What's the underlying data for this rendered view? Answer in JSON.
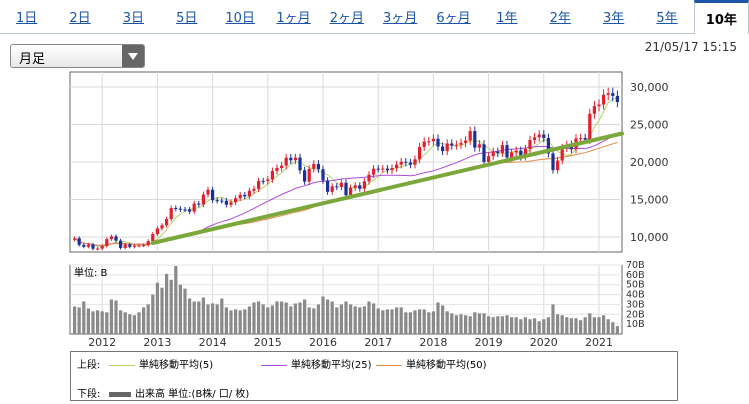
{
  "tabs": [
    {
      "label": "1日",
      "active": false
    },
    {
      "label": "2日",
      "active": false
    },
    {
      "label": "3日",
      "active": false
    },
    {
      "label": "5日",
      "active": false
    },
    {
      "label": "10日",
      "active": false
    },
    {
      "label": "1ヶ月",
      "active": false
    },
    {
      "label": "2ヶ月",
      "active": false
    },
    {
      "label": "3ヶ月",
      "active": false
    },
    {
      "label": "6ヶ月",
      "active": false
    },
    {
      "label": "1年",
      "active": false
    },
    {
      "label": "2年",
      "active": false
    },
    {
      "label": "3年",
      "active": false
    },
    {
      "label": "5年",
      "active": false
    },
    {
      "label": "10年",
      "active": true
    }
  ],
  "period_select": {
    "value": "月足"
  },
  "timestamp": "21/05/17 15:15",
  "legend": {
    "upper_label": "上段:",
    "lower_label": "下段:",
    "items": [
      {
        "label": "単純移動平均(5)",
        "color": "#b5d26b"
      },
      {
        "label": "単純移動平均(25)",
        "color": "#b04ad8"
      },
      {
        "label": "単純移動平均(50)",
        "color": "#e08a4a"
      }
    ],
    "volume_label": "出来高 単位:(B株/ 口/ 枚)"
  },
  "chart_data": [
    {
      "type": "candlestick",
      "x": [
        "2011-07",
        "2011-08",
        "2011-09",
        "2011-10",
        "2011-11",
        "2011-12",
        "2012-01",
        "2012-02",
        "2012-03",
        "2012-04",
        "2012-05",
        "2012-06",
        "2012-07",
        "2012-08",
        "2012-09",
        "2012-10",
        "2012-11",
        "2012-12",
        "2013-01",
        "2013-02",
        "2013-03",
        "2013-04",
        "2013-05",
        "2013-06",
        "2013-07",
        "2013-08",
        "2013-09",
        "2013-10",
        "2013-11",
        "2013-12",
        "2014-01",
        "2014-02",
        "2014-03",
        "2014-04",
        "2014-05",
        "2014-06",
        "2014-07",
        "2014-08",
        "2014-09",
        "2014-10",
        "2014-11",
        "2014-12",
        "2015-01",
        "2015-02",
        "2015-03",
        "2015-04",
        "2015-05",
        "2015-06",
        "2015-07",
        "2015-08",
        "2015-09",
        "2015-10",
        "2015-11",
        "2015-12",
        "2016-01",
        "2016-02",
        "2016-03",
        "2016-04",
        "2016-05",
        "2016-06",
        "2016-07",
        "2016-08",
        "2016-09",
        "2016-10",
        "2016-11",
        "2016-12",
        "2017-01",
        "2017-02",
        "2017-03",
        "2017-04",
        "2017-05",
        "2017-06",
        "2017-07",
        "2017-08",
        "2017-09",
        "2017-10",
        "2017-11",
        "2017-12",
        "2018-01",
        "2018-02",
        "2018-03",
        "2018-04",
        "2018-05",
        "2018-06",
        "2018-07",
        "2018-08",
        "2018-09",
        "2018-10",
        "2018-11",
        "2018-12",
        "2019-01",
        "2019-02",
        "2019-03",
        "2019-04",
        "2019-05",
        "2019-06",
        "2019-07",
        "2019-08",
        "2019-09",
        "2019-10",
        "2019-11",
        "2019-12",
        "2020-01",
        "2020-02",
        "2020-03",
        "2020-04",
        "2020-05",
        "2020-06",
        "2020-07",
        "2020-08",
        "2020-09",
        "2020-10",
        "2020-11",
        "2020-12",
        "2021-01",
        "2021-02",
        "2021-03",
        "2021-04",
        "2021-05"
      ],
      "close": [
        9833,
        8955,
        8700,
        8988,
        8434,
        8455,
        8802,
        9723,
        10083,
        9520,
        8542,
        9006,
        8695,
        8839,
        8870,
        8928,
        9446,
        10395,
        11138,
        11559,
        12397,
        13860,
        13774,
        13677,
        13668,
        13388,
        14455,
        14327,
        15661,
        16291,
        14914,
        14841,
        14827,
        14304,
        14632,
        15162,
        15620,
        15424,
        16173,
        16413,
        17459,
        17450,
        17674,
        18797,
        19206,
        19520,
        20563,
        20235,
        20585,
        18890,
        17388,
        19083,
        19747,
        19033,
        17518,
        16026,
        16758,
        16666,
        17234,
        15575,
        16569,
        16887,
        16449,
        17425,
        18308,
        19114,
        19041,
        19118,
        18909,
        19196,
        19650,
        20033,
        19925,
        19646,
        20356,
        22011,
        22724,
        22764,
        23098,
        22068,
        21454,
        22467,
        22201,
        22304,
        22553,
        22865,
        24120,
        21920,
        22351,
        20014,
        20773,
        21385,
        21205,
        22258,
        20601,
        21275,
        21521,
        20704,
        21755,
        22927,
        23293,
        23656,
        23205,
        21142,
        18917,
        20193,
        21877,
        22288,
        21710,
        23139,
        23185,
        22977,
        26433,
        27444,
        27663,
        28966,
        29178,
        28813,
        28000
      ],
      "xlim": [
        "2011-06",
        "2021-06"
      ],
      "ylim": [
        8000,
        32000
      ],
      "y_ticks": [
        "10,000",
        "15,000",
        "20,000",
        "25,000",
        "30,000"
      ],
      "x_ticks": [
        "2012",
        "2013",
        "2014",
        "2015",
        "2016",
        "2017",
        "2018",
        "2019",
        "2020",
        "2021"
      ],
      "series": [
        {
          "name": "単純移動平均(5)",
          "color": "#b5d26b"
        },
        {
          "name": "単純移動平均(25)",
          "color": "#b04ad8"
        },
        {
          "name": "単純移動平均(50)",
          "color": "#e08a4a"
        }
      ],
      "trendline": {
        "color": "#7aa83a",
        "start": [
          "2012-12",
          9200
        ],
        "end": [
          "2021-06",
          23800
        ]
      },
      "colors": {
        "up": "#e0202e",
        "down": "#1a2f9a"
      }
    },
    {
      "type": "bar",
      "unit_label": "単位: B",
      "y_ticks": [
        "10B",
        "20B",
        "30B",
        "40B",
        "50B",
        "60B",
        "70B"
      ],
      "ylim": [
        0,
        70
      ],
      "color": "#8a8a8a",
      "x": [
        "2011-07",
        "2011-08",
        "2011-09",
        "2011-10",
        "2011-11",
        "2011-12",
        "2012-01",
        "2012-02",
        "2012-03",
        "2012-04",
        "2012-05",
        "2012-06",
        "2012-07",
        "2012-08",
        "2012-09",
        "2012-10",
        "2012-11",
        "2012-12",
        "2013-01",
        "2013-02",
        "2013-03",
        "2013-04",
        "2013-05",
        "2013-06",
        "2013-07",
        "2013-08",
        "2013-09",
        "2013-10",
        "2013-11",
        "2013-12",
        "2014-01",
        "2014-02",
        "2014-03",
        "2014-04",
        "2014-05",
        "2014-06",
        "2014-07",
        "2014-08",
        "2014-09",
        "2014-10",
        "2014-11",
        "2014-12",
        "2015-01",
        "2015-02",
        "2015-03",
        "2015-04",
        "2015-05",
        "2015-06",
        "2015-07",
        "2015-08",
        "2015-09",
        "2015-10",
        "2015-11",
        "2015-12",
        "2016-01",
        "2016-02",
        "2016-03",
        "2016-04",
        "2016-05",
        "2016-06",
        "2016-07",
        "2016-08",
        "2016-09",
        "2016-10",
        "2016-11",
        "2016-12",
        "2017-01",
        "2017-02",
        "2017-03",
        "2017-04",
        "2017-05",
        "2017-06",
        "2017-07",
        "2017-08",
        "2017-09",
        "2017-10",
        "2017-11",
        "2017-12",
        "2018-01",
        "2018-02",
        "2018-03",
        "2018-04",
        "2018-05",
        "2018-06",
        "2018-07",
        "2018-08",
        "2018-09",
        "2018-10",
        "2018-11",
        "2018-12",
        "2019-01",
        "2019-02",
        "2019-03",
        "2019-04",
        "2019-05",
        "2019-06",
        "2019-07",
        "2019-08",
        "2019-09",
        "2019-10",
        "2019-11",
        "2019-12",
        "2020-01",
        "2020-02",
        "2020-03",
        "2020-04",
        "2020-05",
        "2020-06",
        "2020-07",
        "2020-08",
        "2020-09",
        "2020-10",
        "2020-11",
        "2020-12",
        "2021-01",
        "2021-02",
        "2021-03",
        "2021-04",
        "2021-05"
      ],
      "values": [
        28,
        27,
        33,
        26,
        23,
        24,
        23,
        22,
        35,
        34,
        24,
        22,
        20,
        19,
        22,
        27,
        30,
        40,
        52,
        47,
        61,
        55,
        69,
        50,
        46,
        36,
        33,
        33,
        37,
        30,
        31,
        30,
        36,
        27,
        24,
        25,
        24,
        25,
        28,
        32,
        33,
        30,
        27,
        29,
        33,
        33,
        32,
        28,
        31,
        32,
        35,
        27,
        26,
        30,
        38,
        35,
        33,
        27,
        30,
        33,
        30,
        28,
        27,
        28,
        33,
        31,
        26,
        24,
        25,
        25,
        27,
        27,
        22,
        22,
        24,
        25,
        25,
        22,
        23,
        32,
        29,
        23,
        21,
        19,
        20,
        19,
        18,
        22,
        21,
        21,
        18,
        17,
        18,
        18,
        19,
        17,
        17,
        15,
        17,
        15,
        16,
        13,
        15,
        17,
        30,
        20,
        19,
        17,
        16,
        16,
        14,
        17,
        21,
        17,
        17,
        19,
        15,
        12,
        8
      ]
    }
  ]
}
